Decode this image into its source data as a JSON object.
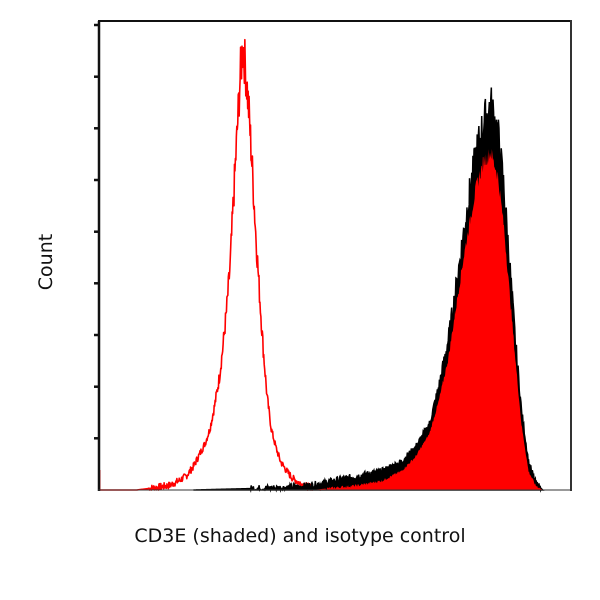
{
  "chart_data": {
    "type": "area",
    "title": "",
    "xlabel": "CD3E (shaded) and isotype control",
    "ylabel": "Count",
    "xlim": [
      0,
      1000
    ],
    "ylim": [
      0,
      100
    ],
    "grid": false,
    "legend": null,
    "yticks_count": 10,
    "xticks_labels": [],
    "yticks_labels": [],
    "series": [
      {
        "name": "Isotype control",
        "style": "outline",
        "color": "#ff0000",
        "x": [
          0,
          80,
          120,
          150,
          170,
          185,
          200,
          215,
          225,
          235,
          245,
          255,
          262,
          270,
          278,
          285,
          292,
          299,
          305,
          312,
          318,
          325,
          332,
          340,
          348,
          356,
          365,
          375,
          385,
          398,
          410,
          425,
          440,
          455,
          470
        ],
        "y": [
          0,
          0,
          0.5,
          1,
          2,
          3,
          5,
          8,
          10,
          13,
          18,
          24,
          30,
          38,
          48,
          62,
          75,
          88,
          95,
          88,
          80,
          68,
          55,
          42,
          30,
          20,
          13,
          9,
          6,
          4,
          2.5,
          1.5,
          0.8,
          0.3,
          0
        ]
      },
      {
        "name": "CD3E",
        "style": "filled",
        "fill_color": "#ff0000",
        "outline_color": "#000000",
        "x": [
          200,
          400,
          450,
          500,
          550,
          600,
          640,
          670,
          700,
          720,
          740,
          755,
          770,
          785,
          800,
          815,
          830,
          845,
          858,
          870,
          882,
          895,
          910,
          925,
          940
        ],
        "y_outline": [
          0,
          0.5,
          1,
          2,
          3,
          4,
          6,
          9,
          14,
          22,
          32,
          42,
          53,
          63,
          72,
          78,
          82,
          76,
          64,
          48,
          32,
          17,
          6,
          1.5,
          0
        ],
        "y_fill": [
          0,
          0,
          0,
          0.5,
          1,
          2,
          4,
          7,
          12,
          19,
          28,
          38,
          48,
          57,
          65,
          70,
          72,
          67,
          56,
          42,
          28,
          14,
          4,
          1,
          0
        ]
      }
    ]
  },
  "axes": {
    "xlabel": "CD3E (shaded) and isotype control",
    "ylabel": "Count"
  }
}
